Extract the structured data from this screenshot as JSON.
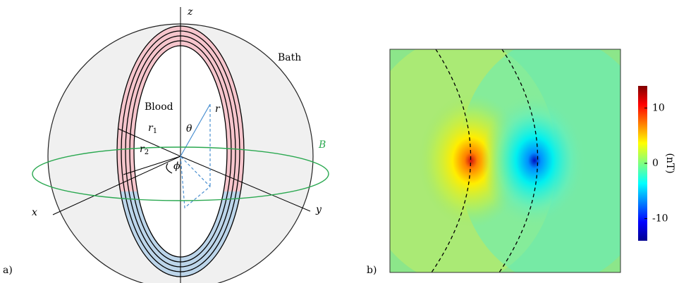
{
  "panel_a": {
    "label": "a)",
    "z_axis": "z",
    "bath": "Bath",
    "blood": "Blood",
    "r1": {
      "label": "r",
      "subscript": "1"
    },
    "r2": {
      "label": "r",
      "subscript": "2"
    },
    "theta": "θ",
    "r": "r",
    "phi": "ϕ",
    "field": "B",
    "x_axis": "x",
    "y_axis": "y"
  },
  "panel_b": {
    "label": "b)",
    "colorbar": {
      "label": "(nT)",
      "lim": [
        -14,
        14
      ],
      "ticks": [
        10,
        0,
        -10
      ]
    }
  }
}
